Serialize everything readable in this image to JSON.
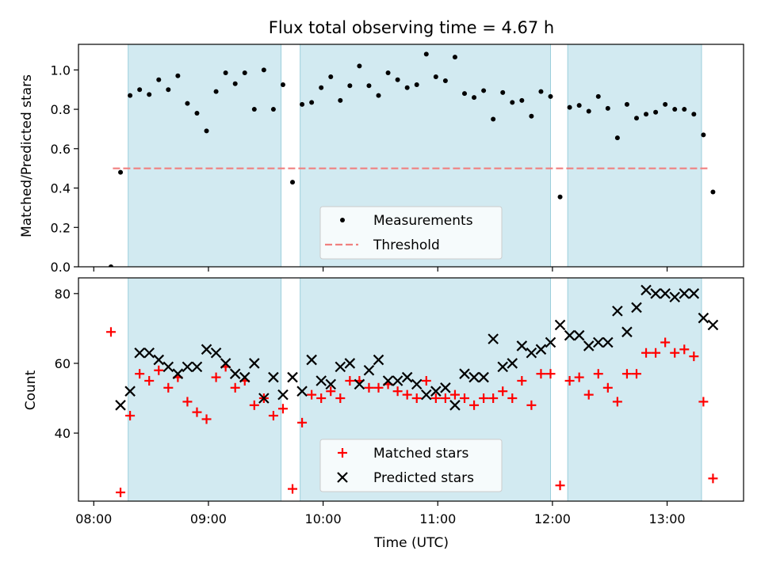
{
  "chart_data": [
    {
      "type": "scatter",
      "title": "Flux total observing time = 4.67 h",
      "xlabel": "",
      "ylabel": "Matched/Predicted stars",
      "ylim": [
        0,
        1.13
      ],
      "yticks": [
        0.0,
        0.2,
        0.4,
        0.6,
        0.8,
        1.0
      ],
      "ytick_labels": [
        "0.0",
        "0.2",
        "0.4",
        "0.6",
        "0.8",
        "1.0"
      ],
      "xlim": [
        "07:52",
        "13:40"
      ],
      "legend_position": "bottom-center",
      "shaded_intervals": [
        [
          "08:18",
          "09:38"
        ],
        [
          "09:48",
          "11:59"
        ],
        [
          "12:08",
          "13:18"
        ]
      ],
      "threshold": {
        "name": "Threshold",
        "value": 0.5,
        "x_range": [
          "08:10",
          "13:22"
        ],
        "color": "#f08080"
      },
      "series": [
        {
          "name": "Measurements",
          "color": "#000000",
          "marker": "dot",
          "points": [
            [
              "08:09",
              0.0
            ],
            [
              "08:14",
              0.48
            ],
            [
              "08:19",
              0.87
            ],
            [
              "08:24",
              0.9
            ],
            [
              "08:29",
              0.875
            ],
            [
              "08:34",
              0.95
            ],
            [
              "08:39",
              0.9
            ],
            [
              "08:44",
              0.97
            ],
            [
              "08:49",
              0.83
            ],
            [
              "08:54",
              0.78
            ],
            [
              "08:59",
              0.69
            ],
            [
              "09:04",
              0.89
            ],
            [
              "09:09",
              0.985
            ],
            [
              "09:14",
              0.93
            ],
            [
              "09:19",
              0.985
            ],
            [
              "09:24",
              0.8
            ],
            [
              "09:29",
              1.0
            ],
            [
              "09:34",
              0.8
            ],
            [
              "09:39",
              0.925
            ],
            [
              "09:44",
              0.43
            ],
            [
              "09:49",
              0.825
            ],
            [
              "09:54",
              0.835
            ],
            [
              "09:59",
              0.91
            ],
            [
              "10:04",
              0.965
            ],
            [
              "10:09",
              0.845
            ],
            [
              "10:14",
              0.92
            ],
            [
              "10:19",
              1.02
            ],
            [
              "10:24",
              0.92
            ],
            [
              "10:29",
              0.87
            ],
            [
              "10:34",
              0.985
            ],
            [
              "10:39",
              0.95
            ],
            [
              "10:44",
              0.91
            ],
            [
              "10:49",
              0.925
            ],
            [
              "10:54",
              1.08
            ],
            [
              "10:59",
              0.965
            ],
            [
              "11:04",
              0.945
            ],
            [
              "11:09",
              1.065
            ],
            [
              "11:14",
              0.88
            ],
            [
              "11:19",
              0.86
            ],
            [
              "11:24",
              0.895
            ],
            [
              "11:29",
              0.75
            ],
            [
              "11:34",
              0.885
            ],
            [
              "11:39",
              0.835
            ],
            [
              "11:44",
              0.845
            ],
            [
              "11:49",
              0.765
            ],
            [
              "11:54",
              0.89
            ],
            [
              "11:59",
              0.865
            ],
            [
              "12:04",
              0.355
            ],
            [
              "12:09",
              0.81
            ],
            [
              "12:14",
              0.82
            ],
            [
              "12:19",
              0.79
            ],
            [
              "12:24",
              0.865
            ],
            [
              "12:29",
              0.805
            ],
            [
              "12:34",
              0.655
            ],
            [
              "12:39",
              0.825
            ],
            [
              "12:44",
              0.755
            ],
            [
              "12:49",
              0.775
            ],
            [
              "12:54",
              0.785
            ],
            [
              "12:59",
              0.825
            ],
            [
              "13:04",
              0.8
            ],
            [
              "13:09",
              0.8
            ],
            [
              "13:14",
              0.775
            ],
            [
              "13:19",
              0.67
            ],
            [
              "13:24",
              0.38
            ]
          ]
        }
      ]
    },
    {
      "type": "scatter",
      "title": "",
      "xlabel": "Time (UTC)",
      "ylabel": "Count",
      "ylim": [
        20.5,
        84.5
      ],
      "yticks": [
        40,
        60,
        80
      ],
      "ytick_labels": [
        "40",
        "60",
        "80"
      ],
      "xlim": [
        "07:52",
        "13:40"
      ],
      "xticks": [
        "08:00",
        "09:00",
        "10:00",
        "11:00",
        "12:00",
        "13:00"
      ],
      "xtick_labels": [
        "08:00",
        "09:00",
        "10:00",
        "11:00",
        "12:00",
        "13:00"
      ],
      "legend_position": "bottom-center",
      "shaded_intervals": [
        [
          "08:18",
          "09:38"
        ],
        [
          "09:48",
          "11:59"
        ],
        [
          "12:08",
          "13:18"
        ]
      ],
      "series": [
        {
          "name": "Matched stars",
          "color": "#ff0000",
          "marker": "plus",
          "points": [
            [
              "08:09",
              69
            ],
            [
              "08:14",
              23
            ],
            [
              "08:19",
              45
            ],
            [
              "08:24",
              57
            ],
            [
              "08:29",
              55
            ],
            [
              "08:34",
              58
            ],
            [
              "08:39",
              53
            ],
            [
              "08:44",
              56
            ],
            [
              "08:49",
              49
            ],
            [
              "08:54",
              46
            ],
            [
              "08:59",
              44
            ],
            [
              "09:04",
              56
            ],
            [
              "09:09",
              59
            ],
            [
              "09:14",
              53
            ],
            [
              "09:19",
              55
            ],
            [
              "09:24",
              48
            ],
            [
              "09:29",
              50
            ],
            [
              "09:34",
              45
            ],
            [
              "09:39",
              47
            ],
            [
              "09:44",
              24
            ],
            [
              "09:49",
              43
            ],
            [
              "09:54",
              51
            ],
            [
              "09:59",
              50
            ],
            [
              "10:04",
              52
            ],
            [
              "10:09",
              50
            ],
            [
              "10:14",
              55
            ],
            [
              "10:19",
              55
            ],
            [
              "10:24",
              53
            ],
            [
              "10:29",
              53
            ],
            [
              "10:34",
              54
            ],
            [
              "10:39",
              52
            ],
            [
              "10:44",
              51
            ],
            [
              "10:49",
              50
            ],
            [
              "10:54",
              55
            ],
            [
              "10:59",
              50
            ],
            [
              "11:04",
              50
            ],
            [
              "11:09",
              51
            ],
            [
              "11:14",
              50
            ],
            [
              "11:19",
              48
            ],
            [
              "11:24",
              50
            ],
            [
              "11:29",
              50
            ],
            [
              "11:34",
              52
            ],
            [
              "11:39",
              50
            ],
            [
              "11:44",
              55
            ],
            [
              "11:49",
              48
            ],
            [
              "11:54",
              57
            ],
            [
              "11:59",
              57
            ],
            [
              "12:04",
              25
            ],
            [
              "12:09",
              55
            ],
            [
              "12:14",
              56
            ],
            [
              "12:19",
              51
            ],
            [
              "12:24",
              57
            ],
            [
              "12:29",
              53
            ],
            [
              "12:34",
              49
            ],
            [
              "12:39",
              57
            ],
            [
              "12:44",
              57
            ],
            [
              "12:49",
              63
            ],
            [
              "12:54",
              63
            ],
            [
              "12:59",
              66
            ],
            [
              "13:04",
              63
            ],
            [
              "13:09",
              64
            ],
            [
              "13:14",
              62
            ],
            [
              "13:19",
              49
            ],
            [
              "13:24",
              27
            ]
          ]
        },
        {
          "name": "Predicted stars",
          "color": "#000000",
          "marker": "x",
          "points": [
            [
              "08:14",
              48
            ],
            [
              "08:19",
              52
            ],
            [
              "08:24",
              63
            ],
            [
              "08:29",
              63
            ],
            [
              "08:34",
              61
            ],
            [
              "08:39",
              59
            ],
            [
              "08:44",
              57
            ],
            [
              "08:49",
              59
            ],
            [
              "08:54",
              59
            ],
            [
              "08:59",
              64
            ],
            [
              "09:04",
              63
            ],
            [
              "09:09",
              60
            ],
            [
              "09:14",
              57
            ],
            [
              "09:19",
              56
            ],
            [
              "09:24",
              60
            ],
            [
              "09:29",
              50
            ],
            [
              "09:34",
              56
            ],
            [
              "09:39",
              51
            ],
            [
              "09:44",
              56
            ],
            [
              "09:49",
              52
            ],
            [
              "09:54",
              61
            ],
            [
              "09:59",
              55
            ],
            [
              "10:04",
              54
            ],
            [
              "10:09",
              59
            ],
            [
              "10:14",
              60
            ],
            [
              "10:19",
              54
            ],
            [
              "10:24",
              58
            ],
            [
              "10:29",
              61
            ],
            [
              "10:34",
              55
            ],
            [
              "10:39",
              55
            ],
            [
              "10:44",
              56
            ],
            [
              "10:49",
              54
            ],
            [
              "10:54",
              51
            ],
            [
              "10:59",
              52
            ],
            [
              "11:04",
              53
            ],
            [
              "11:09",
              48
            ],
            [
              "11:14",
              57
            ],
            [
              "11:19",
              56
            ],
            [
              "11:24",
              56
            ],
            [
              "11:29",
              67
            ],
            [
              "11:34",
              59
            ],
            [
              "11:39",
              60
            ],
            [
              "11:44",
              65
            ],
            [
              "11:49",
              63
            ],
            [
              "11:54",
              64
            ],
            [
              "11:59",
              66
            ],
            [
              "12:04",
              71
            ],
            [
              "12:09",
              68
            ],
            [
              "12:14",
              68
            ],
            [
              "12:19",
              65
            ],
            [
              "12:24",
              66
            ],
            [
              "12:29",
              66
            ],
            [
              "12:34",
              75
            ],
            [
              "12:39",
              69
            ],
            [
              "12:44",
              76
            ],
            [
              "12:49",
              81
            ],
            [
              "12:54",
              80
            ],
            [
              "12:59",
              80
            ],
            [
              "13:04",
              79
            ],
            [
              "13:09",
              80
            ],
            [
              "13:14",
              80
            ],
            [
              "13:19",
              73
            ],
            [
              "13:24",
              71
            ]
          ]
        }
      ]
    }
  ],
  "colors": {
    "shade": "#add8e6",
    "shade_edge": "#9ccfdc"
  }
}
